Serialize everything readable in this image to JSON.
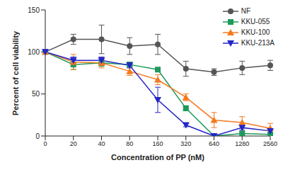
{
  "chart_data": {
    "type": "line",
    "x_label": "Concentration of PP (nM)",
    "y_label": "Percent of cell viability",
    "categories": [
      "0",
      "20",
      "40",
      "80",
      "160",
      "320",
      "640",
      "1280",
      "2560"
    ],
    "ylim": [
      0,
      150
    ],
    "yticks": [
      0,
      50,
      100,
      150
    ],
    "grid": false,
    "legend": "upper right",
    "series": [
      {
        "name": "NF",
        "color": "#555555",
        "marker": "circle",
        "values": [
          100,
          115,
          115,
          107,
          109,
          80,
          76,
          81,
          84
        ],
        "errors": [
          0,
          6,
          17,
          10,
          12,
          9,
          4,
          8,
          6
        ]
      },
      {
        "name": "KKU-055",
        "color": "#1e9a5a",
        "marker": "square",
        "values": [
          100,
          85,
          87,
          85,
          79,
          33,
          0,
          3,
          2
        ],
        "errors": [
          0,
          6,
          4,
          3,
          2,
          3,
          0,
          2,
          1
        ]
      },
      {
        "name": "KKU-100",
        "color": "#f47a20",
        "marker": "triangle",
        "values": [
          100,
          88,
          87,
          77,
          67,
          46,
          19,
          16,
          9
        ],
        "errors": [
          0,
          9,
          6,
          5,
          6,
          4,
          9,
          7,
          6
        ]
      },
      {
        "name": "KKU-213A",
        "color": "#2424c8",
        "marker": "triangle-down",
        "values": [
          100,
          90,
          90,
          84,
          43,
          13,
          0,
          10,
          6
        ],
        "errors": [
          0,
          4,
          4,
          3,
          15,
          2,
          0,
          3,
          2
        ]
      }
    ]
  }
}
